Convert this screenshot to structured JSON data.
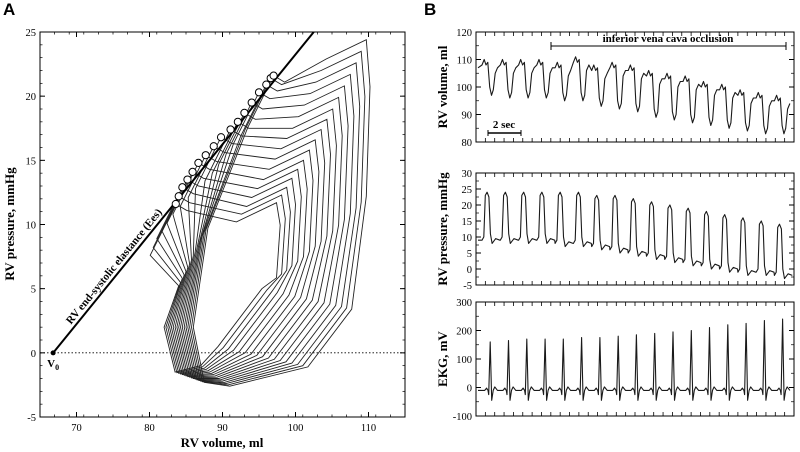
{
  "chart_data": [
    {
      "panel": "A",
      "type": "line",
      "xlabel": "RV volume, ml",
      "ylabel": "RV pressure, mmHg",
      "xlim": [
        65,
        115
      ],
      "ylim": [
        -5,
        25
      ],
      "xticks": [
        "70",
        "80",
        "90",
        "100",
        "110"
      ],
      "yticks": [
        "-5",
        "0",
        "5",
        "10",
        "15",
        "20",
        "25"
      ],
      "zero_line": "dotted",
      "annotation": "RV end-systolic elastance (Ees)",
      "v0_label": "V",
      "v0_subscript": "0",
      "v0": [
        66.8,
        0
      ],
      "ees_line": [
        [
          66.8,
          0
        ],
        [
          102.5,
          25
        ]
      ],
      "end_systolic_points": [
        [
          83.6,
          11.6
        ],
        [
          84.0,
          12.2
        ],
        [
          84.5,
          12.9
        ],
        [
          85.2,
          13.5
        ],
        [
          85.9,
          14.1
        ],
        [
          86.7,
          14.8
        ],
        [
          87.7,
          15.4
        ],
        [
          88.8,
          16.1
        ],
        [
          89.8,
          16.8
        ],
        [
          91.1,
          17.4
        ],
        [
          92.1,
          18.0
        ],
        [
          93.0,
          18.7
        ],
        [
          94.0,
          19.5
        ],
        [
          95.0,
          20.3
        ],
        [
          96.0,
          20.9
        ],
        [
          96.6,
          21.4
        ],
        [
          97.0,
          21.6
        ]
      ],
      "pv_loops": [
        {
          "ed": [
            110.2,
            24.4
          ],
          "es": [
            97.0,
            21.6
          ]
        },
        {
          "ed": [
            109.5,
            23.5
          ],
          "es": [
            96.6,
            21.4
          ]
        },
        {
          "ed": [
            108.8,
            22.6
          ],
          "es": [
            96.0,
            20.9
          ]
        },
        {
          "ed": [
            108.0,
            21.7
          ],
          "es": [
            95.0,
            20.3
          ]
        },
        {
          "ed": [
            107.2,
            20.8
          ],
          "es": [
            94.0,
            19.5
          ]
        },
        {
          "ed": [
            106.4,
            19.9
          ],
          "es": [
            93.0,
            18.7
          ]
        },
        {
          "ed": [
            105.6,
            19.0
          ],
          "es": [
            92.1,
            18.0
          ]
        },
        {
          "ed": [
            104.8,
            18.2
          ],
          "es": [
            91.1,
            17.4
          ]
        },
        {
          "ed": [
            104.0,
            17.4
          ],
          "es": [
            89.8,
            16.8
          ]
        },
        {
          "ed": [
            103.2,
            16.6
          ],
          "es": [
            88.8,
            16.1
          ]
        },
        {
          "ed": [
            102.4,
            15.8
          ],
          "es": [
            87.7,
            15.4
          ]
        },
        {
          "ed": [
            101.6,
            15.0
          ],
          "es": [
            86.7,
            14.8
          ]
        },
        {
          "ed": [
            100.8,
            14.3
          ],
          "es": [
            85.9,
            14.1
          ]
        },
        {
          "ed": [
            100.0,
            13.6
          ],
          "es": [
            85.2,
            13.5
          ]
        },
        {
          "ed": [
            99.3,
            12.9
          ],
          "es": [
            84.5,
            12.9
          ]
        },
        {
          "ed": [
            98.6,
            12.3
          ],
          "es": [
            84.0,
            12.2
          ]
        },
        {
          "ed": [
            97.9,
            11.7
          ],
          "es": [
            83.6,
            11.6
          ]
        }
      ]
    },
    {
      "panel": "B",
      "type": "line",
      "annotation": "inferior vena cava occlusion",
      "scale_bar_label": "2 sec",
      "beats": 17,
      "subplots": [
        {
          "ylabel": "RV volume, ml",
          "ylim": [
            80,
            120
          ],
          "yticks": [
            "80",
            "90",
            "100",
            "110",
            "120"
          ],
          "beat_max": [
            110,
            110,
            110,
            110,
            109,
            111,
            108,
            109,
            108,
            106,
            105,
            104,
            102,
            101,
            99,
            98,
            97
          ],
          "beat_min": [
            97,
            96,
            96,
            96,
            95,
            95,
            93,
            92,
            91,
            89,
            88,
            87,
            86,
            85,
            84,
            83,
            83
          ]
        },
        {
          "ylabel": "RV pressure, mmHg",
          "ylim": [
            -5,
            30
          ],
          "yticks": [
            "-5",
            "0",
            "5",
            "10",
            "15",
            "20",
            "25",
            "30"
          ],
          "beat_peak": [
            24,
            24,
            24,
            24,
            24,
            24,
            23,
            23,
            22,
            21,
            20,
            19,
            18,
            17,
            16,
            15,
            14
          ],
          "beat_base": [
            9,
            9,
            9,
            9,
            8,
            8,
            7,
            6,
            5,
            4,
            3,
            2,
            1,
            0,
            -1,
            -1,
            -2
          ]
        },
        {
          "ylabel": "EKG, mV",
          "ylim": [
            -100,
            300
          ],
          "yticks": [
            "-100",
            "0",
            "100",
            "200",
            "300"
          ],
          "r_peak": [
            160,
            165,
            170,
            170,
            170,
            175,
            175,
            180,
            185,
            190,
            195,
            200,
            210,
            220,
            225,
            235,
            240
          ],
          "baseline": -10
        }
      ]
    }
  ]
}
